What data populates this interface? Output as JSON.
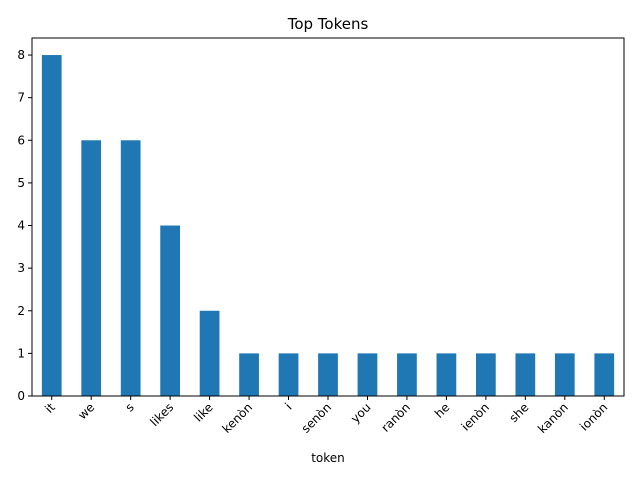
{
  "chart_data": {
    "type": "bar",
    "title": "Top Tokens",
    "xlabel": "token",
    "ylabel": "",
    "categories": [
      "it",
      "we",
      "s",
      "likes",
      "like",
      "kenòn",
      "i",
      "senòn",
      "you",
      "ranòn",
      "he",
      "ienòn",
      "she",
      "kanòn",
      "ionòn"
    ],
    "values": [
      8,
      6,
      6,
      4,
      2,
      1,
      1,
      1,
      1,
      1,
      1,
      1,
      1,
      1,
      1
    ],
    "ylim": [
      0,
      8.4
    ],
    "yticks": [
      0,
      1,
      2,
      3,
      4,
      5,
      6,
      7,
      8
    ],
    "grid": false,
    "legend": "none",
    "bar_color": "#1f77b4"
  }
}
